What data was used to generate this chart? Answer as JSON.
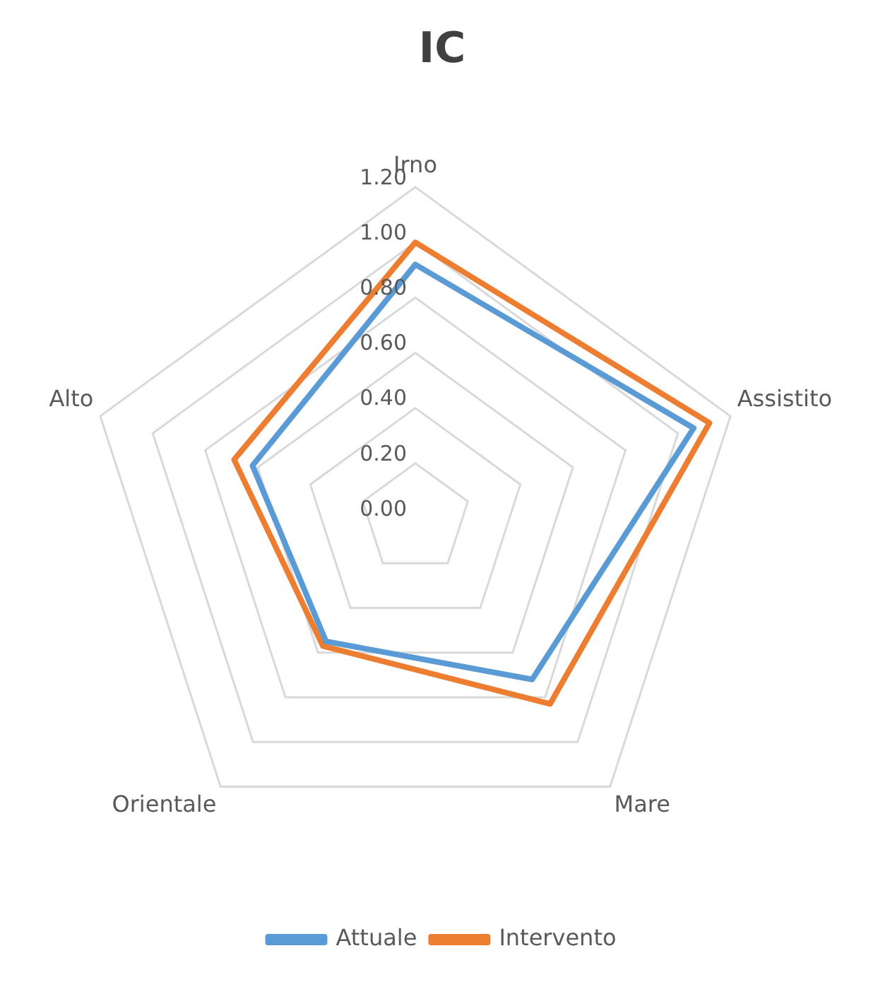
{
  "chart_data": {
    "type": "radar",
    "title": "IC",
    "categories": [
      "Irno",
      "Assistito",
      "Mare",
      "Orientale",
      "Alto"
    ],
    "series": [
      {
        "name": "Attuale",
        "color": "#5b9bd5",
        "values": [
          0.92,
          1.06,
          0.72,
          0.55,
          0.62
        ]
      },
      {
        "name": "Intervento",
        "color": "#ed7d31",
        "values": [
          1.0,
          1.12,
          0.83,
          0.57,
          0.69
        ]
      }
    ],
    "ylim": [
      0,
      1.2
    ],
    "yticks": [
      {
        "value": 0,
        "label": "0.00"
      },
      {
        "value": 0.2,
        "label": "0.20"
      },
      {
        "value": 0.4,
        "label": "0.40"
      },
      {
        "value": 0.6,
        "label": "0.60"
      },
      {
        "value": 0.8,
        "label": "0.80"
      },
      {
        "value": 1.0,
        "label": "1.00"
      },
      {
        "value": 1.2,
        "label": "1.20"
      }
    ],
    "grid": true,
    "legend": "bottom",
    "marker": "none",
    "line_style": "solid"
  }
}
